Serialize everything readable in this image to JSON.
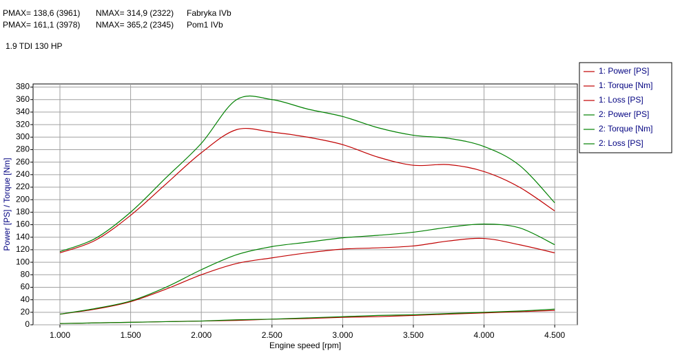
{
  "chart_data": {
    "type": "line",
    "header": [
      [
        "PMAX= 138,6 (3961)",
        "NMAX= 314,9 (2322)",
        "Fabryka IVb"
      ],
      [
        "PMAX= 161,1 (3978)",
        "NMAX= 365,2 (2345)",
        "Pom1 IVb"
      ]
    ],
    "subtitle": "1.9 TDI 130 HP",
    "x_label": "Engine speed [rpm]",
    "y_label": "Power [PS] / Torque [Nm]",
    "x": [
      1000,
      1250,
      1500,
      1750,
      2000,
      2250,
      2500,
      2750,
      3000,
      3250,
      3500,
      3750,
      4000,
      4250,
      4500
    ],
    "series": [
      {
        "name": "1: Power [PS]",
        "color": "#c00000",
        "values": [
          17,
          25,
          37,
          57,
          80,
          98,
          107,
          115,
          121,
          123,
          126,
          134,
          138,
          128,
          115
        ]
      },
      {
        "name": "1: Torque [Nm]",
        "color": "#c00000",
        "values": [
          115,
          135,
          175,
          225,
          275,
          312,
          308,
          300,
          288,
          268,
          255,
          256,
          245,
          220,
          182
        ]
      },
      {
        "name": "1: Loss [PS]",
        "color": "#c00000",
        "values": [
          2,
          3,
          4,
          5,
          6,
          7,
          9,
          10,
          12,
          13,
          15,
          17,
          19,
          21,
          23
        ]
      },
      {
        "name": "2: Power [PS]",
        "color": "#008000",
        "values": [
          17,
          26,
          38,
          60,
          88,
          112,
          125,
          132,
          139,
          143,
          148,
          156,
          161,
          155,
          128
        ]
      },
      {
        "name": "2: Torque [Nm]",
        "color": "#008000",
        "values": [
          117,
          138,
          180,
          235,
          290,
          360,
          360,
          345,
          333,
          315,
          303,
          298,
          285,
          255,
          195
        ]
      },
      {
        "name": "2: Loss [PS]",
        "color": "#008000",
        "values": [
          2,
          3,
          4,
          5,
          6,
          8,
          9,
          11,
          13,
          15,
          16,
          18,
          20,
          22,
          25
        ]
      }
    ],
    "xlim": [
      810,
      4660
    ],
    "xticks": [
      {
        "value": 1000,
        "label": "1.000"
      },
      {
        "value": 1500,
        "label": "1.500"
      },
      {
        "value": 2000,
        "label": "2.000"
      },
      {
        "value": 2500,
        "label": "2.500"
      },
      {
        "value": 3000,
        "label": "3.000"
      },
      {
        "value": 3500,
        "label": "3.500"
      },
      {
        "value": 4000,
        "label": "4.000"
      },
      {
        "value": 4500,
        "label": "4.500"
      }
    ],
    "ylim": [
      0,
      385
    ],
    "yticks": [
      0,
      20,
      40,
      60,
      80,
      100,
      120,
      140,
      160,
      180,
      200,
      220,
      240,
      260,
      280,
      300,
      320,
      340,
      360,
      380
    ],
    "grid": true,
    "legend": "right"
  }
}
